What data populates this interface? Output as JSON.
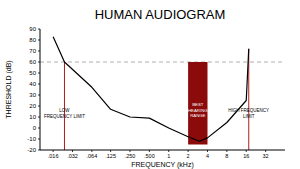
{
  "chart_data": {
    "type": "line",
    "title": "HUMAN AUDIOGRAM",
    "x_label": "FREQUENCY (kHz)",
    "y_label": "THRESHOLD (dB)",
    "log": "x",
    "grid": false,
    "color": "#000000",
    "x": [
      0.016,
      0.024,
      0.064,
      0.125,
      0.25,
      0.5,
      1,
      2,
      3,
      4,
      8,
      16,
      17.5
    ],
    "values": [
      83,
      60,
      37,
      17,
      10,
      9,
      0,
      -8,
      -12,
      -9,
      5,
      25,
      72
    ],
    "xlim": [
      0.01,
      64
    ],
    "ylim": [
      -20,
      90
    ],
    "xticks": [
      {
        "value": 0.016,
        "label": ".016"
      },
      {
        "value": 0.032,
        "label": ".032"
      },
      {
        "value": 0.064,
        "label": ".064"
      },
      {
        "value": 0.125,
        "label": ".125"
      },
      {
        "value": 0.25,
        "label": ".250"
      },
      {
        "value": 0.5,
        "label": ".500"
      },
      1,
      2,
      4,
      8,
      16,
      32
    ],
    "yticks": [
      -20,
      -10,
      0,
      10,
      20,
      30,
      40,
      50,
      60,
      70,
      80,
      90
    ],
    "hlines": [
      {
        "y": 60,
        "color": "#9a9a9a",
        "line_style": "dashed"
      }
    ],
    "bands": [
      {
        "x": [
          2,
          4
        ],
        "y": [
          -15,
          60
        ],
        "color": "#8b0a0a",
        "label": [
          "BEST",
          "HEARING",
          "RANGE"
        ]
      }
    ],
    "vlines": [
      {
        "x": 0.024,
        "y": [
          -20,
          60
        ],
        "color": "#b01c1c",
        "label": [
          "LOW",
          "FREQUENCY LIMIT"
        ]
      },
      {
        "x": 17.5,
        "y": [
          -20,
          72
        ],
        "color": "#b01c1c",
        "label": [
          "HIGH FREQUENCY",
          "LIMIT"
        ]
      }
    ]
  }
}
